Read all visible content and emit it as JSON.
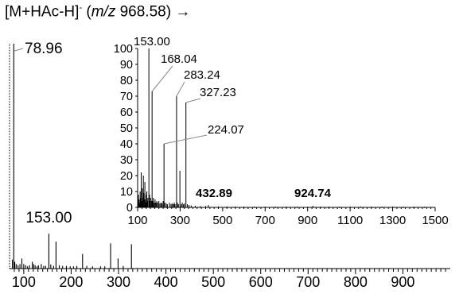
{
  "title": {
    "ion": "[M+HAc-H]",
    "charge": "-",
    "open": "(",
    "mz_label": "m/z",
    "mz_value": "968.58",
    "close": ")",
    "arrow": "→"
  },
  "chart_data": [
    {
      "type": "bar",
      "name": "main",
      "xlim": [
        70,
        1000
      ],
      "ylim": [
        0,
        100
      ],
      "x_ticks": [
        100,
        200,
        300,
        400,
        500,
        600,
        700,
        800,
        900
      ],
      "peaks": [
        [
          78.96,
          100
        ],
        [
          76,
          4
        ],
        [
          81,
          3
        ],
        [
          84,
          2
        ],
        [
          88,
          1.5
        ],
        [
          92,
          2
        ],
        [
          96,
          4.5
        ],
        [
          100,
          2
        ],
        [
          104,
          1.5
        ],
        [
          108,
          1
        ],
        [
          112,
          1.5
        ],
        [
          118,
          3
        ],
        [
          121,
          2
        ],
        [
          124,
          1.5
        ],
        [
          128,
          1
        ],
        [
          131,
          1.5
        ],
        [
          137,
          2
        ],
        [
          142,
          1.2
        ],
        [
          146,
          1.2
        ],
        [
          153.0,
          15.5
        ],
        [
          157,
          1.8
        ],
        [
          163,
          1.2
        ],
        [
          168.04,
          12
        ],
        [
          175,
          1.5
        ],
        [
          182,
          1.2
        ],
        [
          190,
          1.2
        ],
        [
          198,
          1
        ],
        [
          205,
          1
        ],
        [
          212,
          1.2
        ],
        [
          224.07,
          6.5
        ],
        [
          233,
          1.2
        ],
        [
          245,
          1
        ],
        [
          262,
          1
        ],
        [
          271,
          1
        ],
        [
          283.24,
          11.2
        ],
        [
          299,
          4.5
        ],
        [
          310,
          1.2
        ],
        [
          327.23,
          10.8
        ]
      ],
      "labels": [
        {
          "text": "78.96",
          "x": 78.96
        },
        {
          "text": "153.00",
          "x": 153.0
        }
      ]
    },
    {
      "type": "bar",
      "name": "inset",
      "xlim": [
        100,
        1500
      ],
      "ylim": [
        0,
        100
      ],
      "x_ticks": [
        100,
        300,
        500,
        700,
        900,
        1100,
        1300,
        1500
      ],
      "y_ticks": [
        0,
        10,
        20,
        30,
        40,
        50,
        60,
        70,
        80,
        90,
        100
      ],
      "peaks": [
        [
          104,
          8
        ],
        [
          107,
          5
        ],
        [
          109,
          3
        ],
        [
          112,
          10
        ],
        [
          114,
          6
        ],
        [
          117,
          22
        ],
        [
          119,
          4
        ],
        [
          122,
          12
        ],
        [
          124,
          6
        ],
        [
          127,
          20
        ],
        [
          129,
          9
        ],
        [
          131,
          5
        ],
        [
          134,
          16
        ],
        [
          136,
          5
        ],
        [
          139,
          3
        ],
        [
          141,
          8
        ],
        [
          143,
          10
        ],
        [
          145,
          4
        ],
        [
          148,
          6
        ],
        [
          153.0,
          100
        ],
        [
          156,
          8
        ],
        [
          158,
          4
        ],
        [
          161,
          6
        ],
        [
          165,
          4
        ],
        [
          168.04,
          73
        ],
        [
          171,
          4
        ],
        [
          174,
          6
        ],
        [
          178,
          3
        ],
        [
          182,
          5
        ],
        [
          186,
          3
        ],
        [
          190,
          4
        ],
        [
          195,
          3
        ],
        [
          200,
          4
        ],
        [
          205,
          2.5
        ],
        [
          210,
          3
        ],
        [
          215,
          2.5
        ],
        [
          220,
          4
        ],
        [
          224.07,
          40
        ],
        [
          228,
          3
        ],
        [
          235,
          2.5
        ],
        [
          240,
          2
        ],
        [
          250,
          3
        ],
        [
          257,
          2
        ],
        [
          262,
          2.5
        ],
        [
          268,
          2
        ],
        [
          272,
          3
        ],
        [
          276,
          2
        ],
        [
          283.24,
          70
        ],
        [
          287,
          3
        ],
        [
          292,
          2
        ],
        [
          299,
          23
        ],
        [
          305,
          2
        ],
        [
          310,
          3
        ],
        [
          316,
          2
        ],
        [
          320,
          2.5
        ],
        [
          327.23,
          66
        ],
        [
          334,
          2
        ],
        [
          342,
          1.5
        ],
        [
          352,
          1.2
        ],
        [
          371,
          1
        ],
        [
          395,
          0.8
        ],
        [
          420,
          0.8
        ],
        [
          432.89,
          1.5
        ],
        [
          480,
          0.6
        ],
        [
          520,
          0.6
        ],
        [
          560,
          0.5
        ],
        [
          600,
          0.5
        ],
        [
          650,
          0.5
        ],
        [
          700,
          0.5
        ],
        [
          750,
          0.5
        ],
        [
          800,
          0.5
        ],
        [
          850,
          0.5
        ],
        [
          900,
          0.5
        ],
        [
          924.74,
          1
        ],
        [
          960,
          0.5
        ],
        [
          1000,
          0.5
        ],
        [
          1050,
          0.5
        ],
        [
          1100,
          0.5
        ],
        [
          1150,
          0.5
        ],
        [
          1200,
          0.5
        ],
        [
          1250,
          0.5
        ],
        [
          1300,
          0.5
        ],
        [
          1350,
          0.5
        ],
        [
          1400,
          0.5
        ],
        [
          1450,
          0.5
        ]
      ],
      "labels": [
        {
          "text": "153.00",
          "x": 153.0,
          "bold": false
        },
        {
          "text": "168.04",
          "x": 168.04,
          "bold": false
        },
        {
          "text": "283.24",
          "x": 283.24,
          "bold": false
        },
        {
          "text": "327.23",
          "x": 327.23,
          "bold": false
        },
        {
          "text": "224.07",
          "x": 224.07,
          "bold": false
        },
        {
          "text": "432.89",
          "x": 432.89,
          "bold": true
        },
        {
          "text": "924.74",
          "x": 924.74,
          "bold": true
        }
      ]
    }
  ]
}
